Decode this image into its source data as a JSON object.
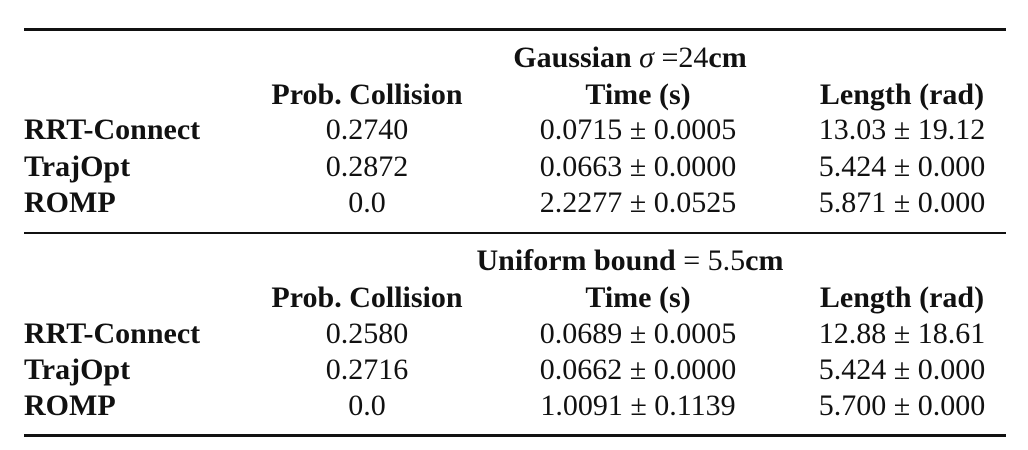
{
  "sections": [
    {
      "title": {
        "label": "Gaussian",
        "symbol": "σ",
        "relation": "=",
        "number": "24",
        "unit": "cm"
      },
      "columns": [
        "Prob. Collision",
        "Time (s)",
        "Length (rad)"
      ],
      "rows": [
        {
          "method": "RRT-Connect",
          "prob": "0.2740",
          "time": "0.0715 ± 0.0005",
          "length": "13.03 ± 19.12"
        },
        {
          "method": "TrajOpt",
          "prob": "0.2872",
          "time": "0.0663 ± 0.0000",
          "length": "5.424 ± 0.000"
        },
        {
          "method": "ROMP",
          "prob": "0.0",
          "time": "2.2277 ± 0.0525",
          "length": "5.871 ± 0.000"
        }
      ]
    },
    {
      "title": {
        "label": "Uniform bound",
        "symbol": "",
        "relation": "=",
        "number": "5.5",
        "unit": "cm"
      },
      "columns": [
        "Prob. Collision",
        "Time (s)",
        "Length (rad)"
      ],
      "rows": [
        {
          "method": "RRT-Connect",
          "prob": "0.2580",
          "time": "0.0689 ± 0.0005",
          "length": "12.88 ± 18.61"
        },
        {
          "method": "TrajOpt",
          "prob": "0.2716",
          "time": "0.0662 ± 0.0000",
          "length": "5.424 ± 0.000"
        },
        {
          "method": "ROMP",
          "prob": "0.0",
          "time": "1.0091 ± 0.1139",
          "length": "5.700 ± 0.000"
        }
      ]
    }
  ]
}
